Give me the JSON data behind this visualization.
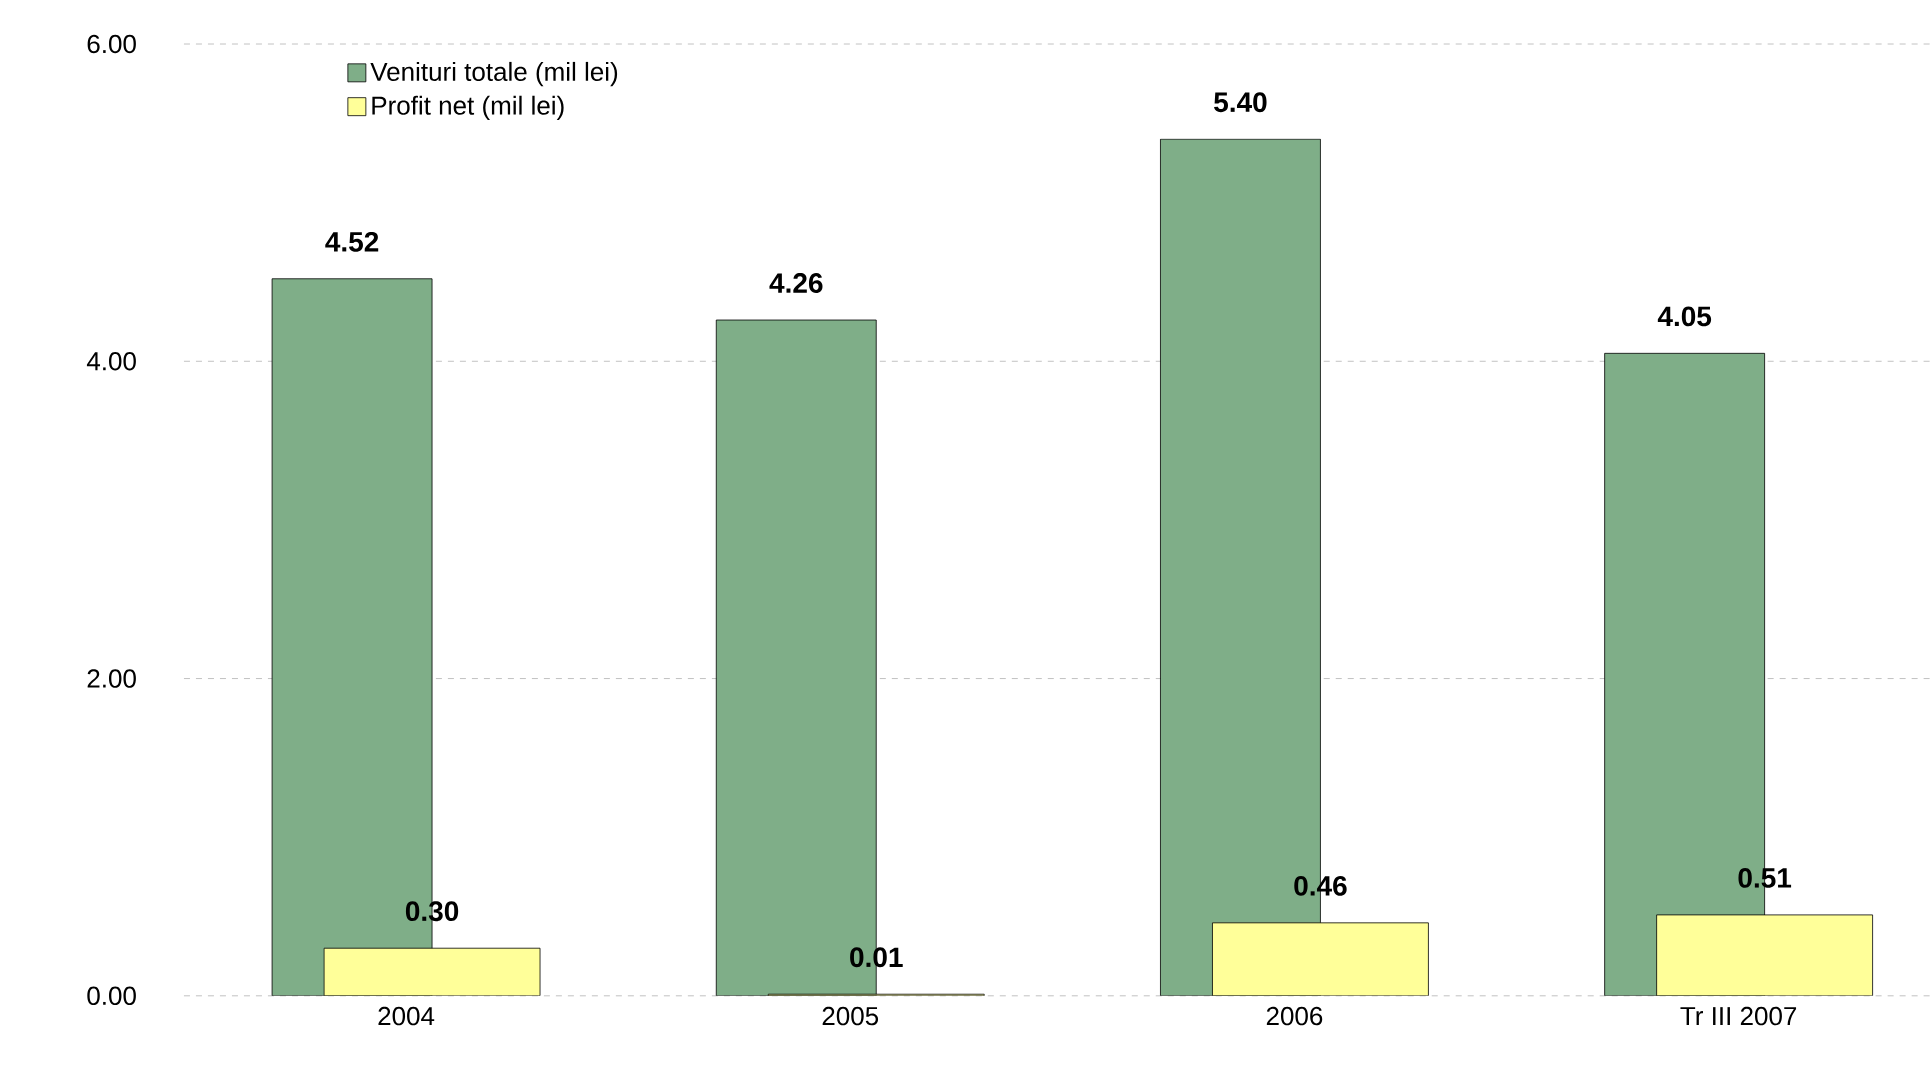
{
  "chart_data": {
    "type": "bar",
    "categories": [
      "2004",
      "2005",
      "2006",
      "Tr III 2007"
    ],
    "series": [
      {
        "name": "Venituri totale (mil lei)",
        "color": "#7fae88",
        "values": [
          4.52,
          4.26,
          5.4,
          4.05
        ],
        "value_labels": [
          "4.52",
          "4.26",
          "5.40",
          "4.05"
        ]
      },
      {
        "name": "Profit net (mil lei)",
        "color": "#ffff99",
        "values": [
          0.3,
          0.01,
          0.46,
          0.51
        ],
        "value_labels": [
          "0.30",
          "0.01",
          "0.46",
          "0.51"
        ]
      }
    ],
    "ylim": [
      0,
      6
    ],
    "yticks": [
      {
        "value": 0,
        "label": "0.00"
      },
      {
        "value": 2,
        "label": "2.00"
      },
      {
        "value": 4,
        "label": "4.00"
      },
      {
        "value": 6,
        "label": "6.00"
      }
    ],
    "grid": "y",
    "legend": "top left"
  }
}
